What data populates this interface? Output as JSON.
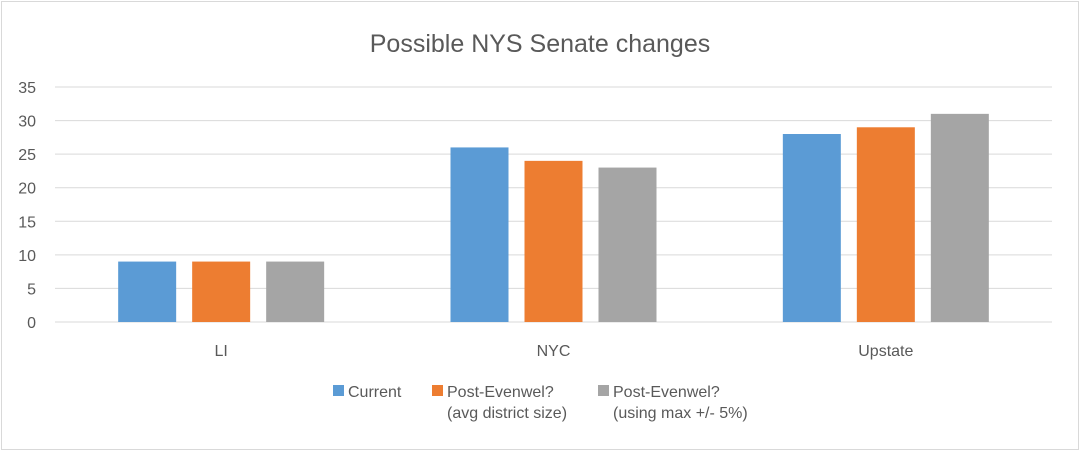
{
  "chart_data": {
    "type": "bar",
    "title": "Possible NYS Senate changes",
    "categories": [
      "LI",
      "NYC",
      "Upstate"
    ],
    "series": [
      {
        "name": "Current",
        "lines": [
          "Current"
        ],
        "color": "#5b9bd5",
        "values": [
          9,
          26,
          28
        ]
      },
      {
        "name": "Post-Evenwel? (avg district size)",
        "lines": [
          "Post-Evenwel?",
          "(avg district size)"
        ],
        "color": "#ed7d31",
        "values": [
          9,
          24,
          29
        ]
      },
      {
        "name": "Post-Evenwel? (using max +/- 5%)",
        "lines": [
          "Post-Evenwel?",
          "(using max +/- 5%)"
        ],
        "color": "#a5a5a5",
        "values": [
          9,
          23,
          31
        ]
      }
    ],
    "ylim": [
      0,
      35
    ],
    "yticks": [
      0,
      5,
      10,
      15,
      20,
      25,
      30,
      35
    ],
    "xlabel": "",
    "ylabel": "",
    "grid": true,
    "legend": "bottom"
  }
}
